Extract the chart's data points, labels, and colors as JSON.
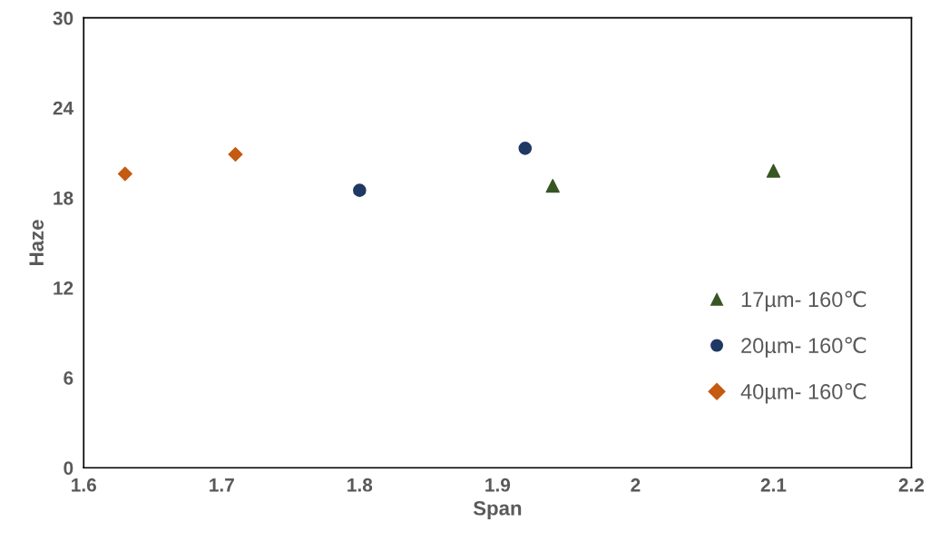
{
  "chart_data": {
    "type": "scatter",
    "xlabel": "Span",
    "ylabel": "Haze",
    "xlim": [
      1.6,
      2.2
    ],
    "xticks": [
      1.6,
      1.7,
      1.8,
      1.9,
      2,
      2.1,
      2.2
    ],
    "ylim": [
      0,
      30
    ],
    "yticks": [
      0,
      6,
      12,
      18,
      24,
      30
    ],
    "grid": false,
    "legend": "bottom right",
    "series": [
      {
        "name": "17µm- 160℃",
        "color": "#375623",
        "marker": "triangle",
        "x": [
          1.94,
          2.1
        ],
        "values": [
          18.8,
          19.8
        ]
      },
      {
        "name": "20µm- 160℃",
        "color": "#1f3864",
        "marker": "circle",
        "x": [
          1.8,
          1.92
        ],
        "values": [
          18.5,
          21.3
        ]
      },
      {
        "name": "40µm- 160℃",
        "color": "#c55a11",
        "marker": "diamond",
        "x": [
          1.63,
          1.71
        ],
        "values": [
          19.6,
          20.9
        ]
      }
    ]
  }
}
